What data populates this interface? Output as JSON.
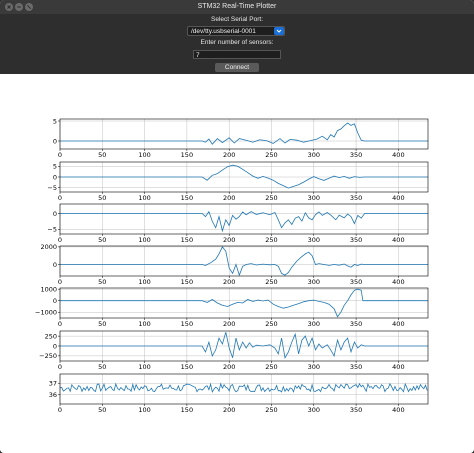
{
  "window": {
    "title": "STM32 Real-Time Plotter"
  },
  "controls": {
    "port_label": "Select Serial Port:",
    "port_value": "/dev/tty.usbserial-0001",
    "sensors_label": "Enter number of sensors:",
    "sensors_value": "7",
    "connect_label": "Connect"
  },
  "colors": {
    "line": "#1f77b4",
    "grid": "#b0b0b0"
  },
  "chart_data": [
    {
      "type": "line",
      "xlim": [
        0,
        435
      ],
      "ylim": [
        -2,
        5.5
      ],
      "yticks": [
        0,
        5
      ],
      "xticks": [
        0,
        50,
        100,
        150,
        200,
        250,
        300,
        350,
        400
      ],
      "grid": true,
      "x": [
        0,
        168,
        172,
        176,
        180,
        186,
        192,
        200,
        206,
        212,
        220,
        228,
        236,
        244,
        252,
        260,
        266,
        272,
        280,
        288,
        296,
        304,
        310,
        316,
        320,
        324,
        328,
        332,
        336,
        340,
        344,
        348,
        352,
        356,
        360,
        435
      ],
      "y": [
        0,
        0,
        -0.3,
        0.5,
        -0.8,
        0.6,
        -0.4,
        0.8,
        -0.5,
        0.6,
        0.2,
        -0.3,
        0.3,
        0.1,
        -0.6,
        0.6,
        -0.5,
        0.4,
        0.2,
        -0.3,
        0.1,
        0.5,
        1.2,
        0.3,
        1.6,
        1.0,
        2.6,
        3.0,
        3.8,
        4.5,
        3.9,
        4.3,
        2.0,
        0.2,
        0,
        0
      ]
    },
    {
      "type": "line",
      "xlim": [
        0,
        435
      ],
      "ylim": [
        -7,
        7
      ],
      "yticks": [
        -5,
        0,
        5
      ],
      "xticks": [
        0,
        50,
        100,
        150,
        200,
        250,
        300,
        350,
        400
      ],
      "grid": true,
      "x": [
        0,
        168,
        174,
        180,
        186,
        192,
        198,
        204,
        210,
        216,
        222,
        228,
        234,
        240,
        246,
        252,
        258,
        264,
        270,
        276,
        282,
        288,
        294,
        300,
        306,
        312,
        318,
        324,
        330,
        336,
        342,
        348,
        354,
        360,
        435
      ],
      "y": [
        0,
        0,
        -1.5,
        0.8,
        1.6,
        3.2,
        4.8,
        5.5,
        5.0,
        3.6,
        2.0,
        0.4,
        -0.6,
        0.3,
        -0.5,
        -1.5,
        -3.0,
        -4.0,
        -5.2,
        -4.4,
        -3.6,
        -2.4,
        -1.0,
        0.2,
        -0.8,
        -1.6,
        -0.6,
        0.4,
        -0.3,
        0.3,
        -0.6,
        0.2,
        -0.2,
        0,
        0
      ]
    },
    {
      "type": "line",
      "xlim": [
        0,
        435
      ],
      "ylim": [
        -6.5,
        3
      ],
      "yticks": [
        -5,
        0
      ],
      "xticks": [
        0,
        50,
        100,
        150,
        200,
        250,
        300,
        350,
        400
      ],
      "grid": true,
      "x": [
        0,
        168,
        172,
        176,
        180,
        184,
        188,
        192,
        196,
        200,
        204,
        208,
        212,
        216,
        220,
        226,
        232,
        240,
        248,
        254,
        258,
        262,
        266,
        270,
        274,
        278,
        282,
        286,
        290,
        294,
        298,
        302,
        306,
        310,
        316,
        320,
        326,
        330,
        336,
        340,
        344,
        348,
        352,
        356,
        360,
        435
      ],
      "y": [
        0,
        0,
        -1.0,
        0.6,
        -2.5,
        -4.5,
        -1.0,
        -5.5,
        -2.0,
        -3.8,
        -0.6,
        -1.8,
        -1.0,
        0.5,
        -0.4,
        0.6,
        -0.3,
        0.2,
        -0.4,
        0.3,
        -2.0,
        -4.5,
        -3.0,
        -2.0,
        -3.5,
        -1.5,
        -1.0,
        -2.4,
        0.2,
        -1.4,
        -2.0,
        -0.4,
        0.5,
        -0.6,
        0.3,
        -0.5,
        -2.0,
        -0.5,
        -1.4,
        -0.2,
        -1.0,
        -3.2,
        -0.6,
        -1.5,
        0,
        0
      ]
    },
    {
      "type": "line",
      "xlim": [
        0,
        435
      ],
      "ylim": [
        -1300,
        2100
      ],
      "yticks": [
        0,
        2000
      ],
      "xticks": [
        0,
        50,
        100,
        150,
        200,
        250,
        300,
        350,
        400
      ],
      "grid": true,
      "x": [
        0,
        168,
        172,
        178,
        184,
        188,
        192,
        196,
        200,
        204,
        208,
        212,
        216,
        220,
        226,
        232,
        240,
        248,
        254,
        258,
        262,
        266,
        270,
        274,
        280,
        286,
        290,
        294,
        298,
        302,
        306,
        312,
        318,
        324,
        330,
        336,
        340,
        344,
        348,
        352,
        356,
        360,
        435
      ],
      "y": [
        0,
        0,
        -100,
        200,
        600,
        1200,
        2000,
        1500,
        -400,
        -1000,
        0,
        -1200,
        -200,
        0,
        100,
        -50,
        50,
        -30,
        0,
        -200,
        -1000,
        -1200,
        -900,
        -300,
        400,
        900,
        1200,
        1400,
        1000,
        0,
        100,
        0,
        -100,
        0,
        -80,
        60,
        -150,
        -300,
        0,
        -100,
        50,
        0,
        0
      ]
    },
    {
      "type": "line",
      "xlim": [
        0,
        435
      ],
      "ylim": [
        -1500,
        1100
      ],
      "yticks": [
        -1000,
        0,
        1000
      ],
      "xticks": [
        0,
        50,
        100,
        150,
        200,
        250,
        300,
        350,
        400
      ],
      "grid": true,
      "x": [
        0,
        168,
        174,
        180,
        186,
        192,
        198,
        204,
        210,
        216,
        222,
        228,
        234,
        240,
        246,
        252,
        258,
        264,
        270,
        276,
        282,
        288,
        294,
        300,
        306,
        312,
        318,
        324,
        328,
        332,
        336,
        340,
        344,
        348,
        352,
        356,
        358,
        360,
        435
      ],
      "y": [
        0,
        0,
        -150,
        100,
        -200,
        -400,
        -500,
        -300,
        -150,
        -200,
        100,
        -60,
        60,
        -30,
        60,
        -300,
        -500,
        -650,
        -550,
        -400,
        -250,
        -100,
        0,
        50,
        -60,
        -150,
        -300,
        -700,
        -1400,
        -1000,
        -400,
        0,
        500,
        900,
        1000,
        900,
        0,
        0,
        0
      ]
    },
    {
      "type": "line",
      "xlim": [
        0,
        435
      ],
      "ylim": [
        -380,
        380
      ],
      "yticks": [
        -250,
        0,
        250
      ],
      "xticks": [
        0,
        50,
        100,
        150,
        200,
        250,
        300,
        350,
        400
      ],
      "grid": true,
      "x": [
        0,
        168,
        172,
        176,
        180,
        184,
        188,
        192,
        196,
        200,
        204,
        208,
        212,
        216,
        220,
        224,
        228,
        232,
        240,
        248,
        254,
        258,
        262,
        266,
        270,
        274,
        278,
        282,
        286,
        290,
        294,
        298,
        302,
        306,
        310,
        316,
        320,
        324,
        328,
        332,
        336,
        340,
        344,
        348,
        352,
        356,
        360,
        435
      ],
      "y": [
        0,
        0,
        -150,
        100,
        -250,
        -100,
        200,
        50,
        350,
        -50,
        -300,
        200,
        -100,
        100,
        -50,
        80,
        -30,
        20,
        0,
        30,
        -50,
        -200,
        200,
        -300,
        -150,
        100,
        300,
        -200,
        150,
        250,
        0,
        200,
        -100,
        50,
        -50,
        30,
        -100,
        -250,
        150,
        -100,
        100,
        200,
        -150,
        100,
        -50,
        30,
        0,
        0
      ]
    },
    {
      "type": "line",
      "xlim": [
        0,
        435
      ],
      "ylim": [
        35.2,
        37.8
      ],
      "yticks": [
        36,
        37
      ],
      "xticks": [
        0,
        50,
        100,
        150,
        200,
        250,
        300,
        350,
        400
      ],
      "grid": true,
      "noise_mean": 36.6,
      "noise_amplitude": 0.35
    }
  ]
}
